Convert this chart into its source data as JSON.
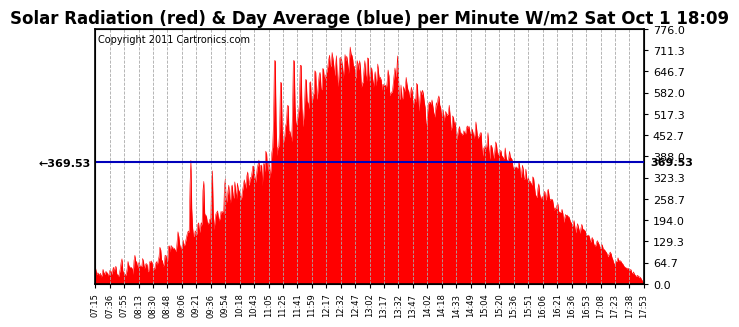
{
  "title": "Solar Radiation (red) & Day Average (blue) per Minute W/m2 Sat Oct 1 18:09",
  "copyright": "Copyright 2011 Cartronics.com",
  "ymax": 776.0,
  "ymin": 0.0,
  "yticks_right": [
    0.0,
    64.7,
    129.3,
    194.0,
    258.7,
    323.3,
    388.0,
    452.7,
    517.3,
    582.0,
    646.7,
    711.3,
    776.0
  ],
  "avg_value": 369.53,
  "fill_color": "#FF0000",
  "line_color": "#0000BB",
  "bg_color": "#FFFFFF",
  "grid_color": "#AAAAAA",
  "title_fontsize": 12,
  "copyright_fontsize": 7,
  "xtick_labels": [
    "07:15",
    "07:36",
    "07:55",
    "08:13",
    "08:30",
    "08:48",
    "09:06",
    "09:21",
    "09:36",
    "09:54",
    "10:18",
    "10:43",
    "11:05",
    "11:25",
    "11:41",
    "11:59",
    "12:17",
    "12:32",
    "12:47",
    "13:02",
    "13:17",
    "13:32",
    "13:47",
    "14:02",
    "14:18",
    "14:33",
    "14:49",
    "15:04",
    "15:20",
    "15:36",
    "15:51",
    "16:06",
    "16:21",
    "16:36",
    "16:53",
    "17:08",
    "17:23",
    "17:38",
    "17:53"
  ]
}
